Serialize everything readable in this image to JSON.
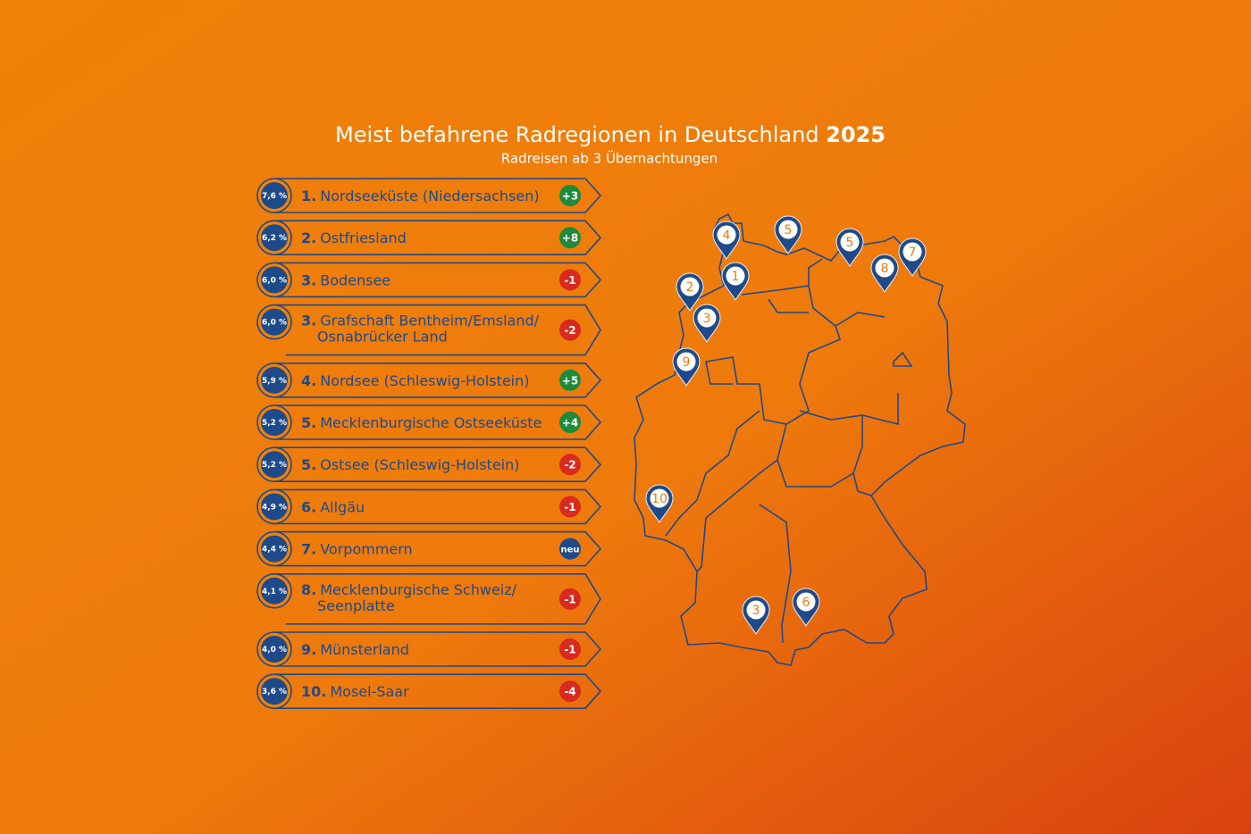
{
  "header": {
    "title": "Meist befahrene Radregionen in Deutschland",
    "year": "2025",
    "subtitle": "Radreisen ab 3 Übernachtungen"
  },
  "ranking": [
    {
      "share": "7,6 %",
      "rank": "1.",
      "name": [
        "Nordseeküste (Niedersachsen)"
      ],
      "change": "+3"
    },
    {
      "share": "6,2 %",
      "rank": "2.",
      "name": [
        "Ostfriesland"
      ],
      "change": "+8"
    },
    {
      "share": "6,0 %",
      "rank": "3.",
      "name": [
        "Bodensee"
      ],
      "change": "-1"
    },
    {
      "share": "6,0 %",
      "rank": "3.",
      "name": [
        "Grafschaft Bentheim/Emsland/",
        "Osnabrücker Land"
      ],
      "change": "-2"
    },
    {
      "share": "5,9 %",
      "rank": "4.",
      "name": [
        "Nordsee (Schleswig-Holstein)"
      ],
      "change": "+5"
    },
    {
      "share": "5,2 %",
      "rank": "5.",
      "name": [
        "Mecklenburgische Ostseeküste"
      ],
      "change": "+4"
    },
    {
      "share": "5,2 %",
      "rank": "5.",
      "name": [
        "Ostsee (Schleswig-Holstein)"
      ],
      "change": "-2"
    },
    {
      "share": "4,9 %",
      "rank": "6.",
      "name": [
        "Allgäu"
      ],
      "change": "-1"
    },
    {
      "share": "4,4 %",
      "rank": "7.",
      "name": [
        "Vorpommern"
      ],
      "change": "neu"
    },
    {
      "share": "4,1 %",
      "rank": "8.",
      "name": [
        "Mecklenburgische Schweiz/",
        "Seenplatte"
      ],
      "change": "-1"
    },
    {
      "share": "4,0 %",
      "rank": "9.",
      "name": [
        "Münsterland"
      ],
      "change": "-1"
    },
    {
      "share": "3,6 %",
      "rank": "10.",
      "name": [
        "Mosel-Saar"
      ],
      "change": "-4"
    }
  ],
  "map": {
    "pins": [
      "4",
      "5",
      "5",
      "7",
      "8",
      "1",
      "2",
      "3",
      "9",
      "10",
      "3",
      "6"
    ]
  }
}
